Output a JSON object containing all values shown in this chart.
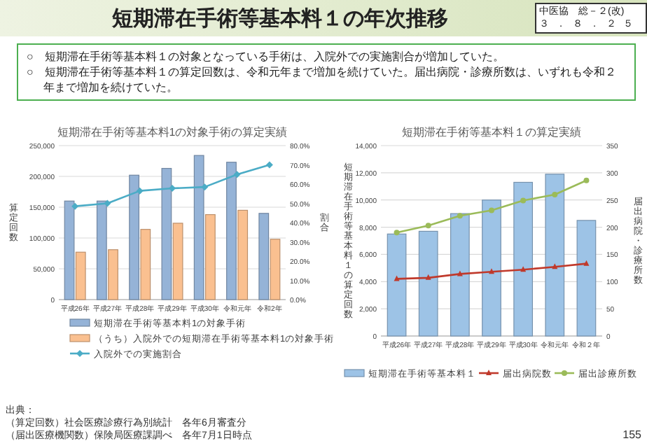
{
  "chart_data": [
    {
      "type": "other",
      "title": "短期滞在手術等基本料１の年次推移",
      "annotations": [
        "中医協　総－２(改)",
        "３．８．２５",
        "○　短期滞在手術等基本料１の対象となっている手術は、入院外での実施割合が増加していた。",
        "○　短期滞在手術等基本料１の算定回数は、令和元年まで増加を続けていた。届出病院・診療所数は、いずれも令和２年まで増加を続けていた。",
        "出典：",
        "（算定回数）社会医療診療行為別統計　各年6月審査分",
        "（届出医療機関数）保険局医療課調べ　各年7月1日時点",
        "155"
      ]
    },
    {
      "type": "bar",
      "title": "短期滞在手術等基本料1の対象手術の算定実績",
      "ylabel": "算定回数",
      "y2label": "割合",
      "categories": [
        "平成26年",
        "平成27年",
        "平成28年",
        "平成29年",
        "平成30年",
        "令和元年",
        "令和2年"
      ],
      "ylim": [
        0,
        250000
      ],
      "yticks": [
        {
          "value": 0,
          "label": "0"
        },
        {
          "value": 50000,
          "label": "50,000"
        },
        {
          "value": 100000,
          "label": "100,000"
        },
        {
          "value": 150000,
          "label": "150,000"
        },
        {
          "value": 200000,
          "label": "200,000"
        },
        {
          "value": 250000,
          "label": "250,000"
        }
      ],
      "y2lim": [
        0,
        80
      ],
      "y2ticks": [
        {
          "value": 0,
          "label": "0.0%"
        },
        {
          "value": 10,
          "label": "10.0%"
        },
        {
          "value": 20,
          "label": "20.0%"
        },
        {
          "value": 30,
          "label": "30.0%"
        },
        {
          "value": 40,
          "label": "40.0%"
        },
        {
          "value": 50,
          "label": "50.0%"
        },
        {
          "value": 60,
          "label": "60.0%"
        },
        {
          "value": 70,
          "label": "70.0%"
        },
        {
          "value": 80,
          "label": "80.0%"
        }
      ],
      "grid": "y",
      "legend": "bottom",
      "series": [
        {
          "name": "短期滞在手術等基本料1の対象手術",
          "color": "#95b3d7",
          "values": [
            160000,
            160000,
            202000,
            213000,
            234000,
            223000,
            140000
          ]
        },
        {
          "name": "（うち）入院外での短期滞在手術等基本料1の対象手術",
          "color": "#fac090",
          "values": [
            77000,
            81000,
            114000,
            124000,
            138000,
            145000,
            98000
          ]
        },
        {
          "name": "入院外での実施割合",
          "type": "line",
          "axis": "y2",
          "marker": "diamond",
          "color": "#4bacc6",
          "values": [
            48.5,
            50,
            56.5,
            57.8,
            58.5,
            65,
            70
          ]
        }
      ]
    },
    {
      "type": "bar",
      "title": "短期滞在手術等基本料１の算定実績",
      "ylabel": "短期滞在手術等基本料１の算定回数",
      "y2label": "届出病院・診療所数",
      "categories": [
        "平成26年",
        "平成27年",
        "平成28年",
        "平成29年",
        "平成30年",
        "令和元年",
        "令和２年"
      ],
      "ylim": [
        0,
        14000
      ],
      "yticks": [
        {
          "value": 0,
          "label": "0"
        },
        {
          "value": 2000,
          "label": "2,000"
        },
        {
          "value": 4000,
          "label": "4,000"
        },
        {
          "value": 6000,
          "label": "6,000"
        },
        {
          "value": 8000,
          "label": "8,000"
        },
        {
          "value": 10000,
          "label": "10,000"
        },
        {
          "value": 12000,
          "label": "12,000"
        },
        {
          "value": 14000,
          "label": "14,000"
        }
      ],
      "y2lim": [
        0,
        350
      ],
      "y2ticks": [
        0,
        50,
        100,
        150,
        200,
        250,
        300,
        350
      ],
      "grid": "y",
      "legend": "bottom",
      "series": [
        {
          "name": "短期滞在手術等基本料１",
          "color": "#9dc3e6",
          "values": [
            7500,
            7700,
            9000,
            10000,
            11300,
            11900,
            8500
          ]
        },
        {
          "name": "届出病院数",
          "type": "line",
          "axis": "y2",
          "marker": "triangle",
          "color": "#c0392b",
          "values": [
            105,
            107,
            114,
            118,
            122,
            127,
            133
          ]
        },
        {
          "name": "届出診療所数",
          "type": "line",
          "axis": "y2",
          "marker": "circle",
          "color": "#9bbb59",
          "values": [
            190,
            203,
            221,
            231,
            249,
            260,
            286
          ]
        }
      ]
    }
  ]
}
